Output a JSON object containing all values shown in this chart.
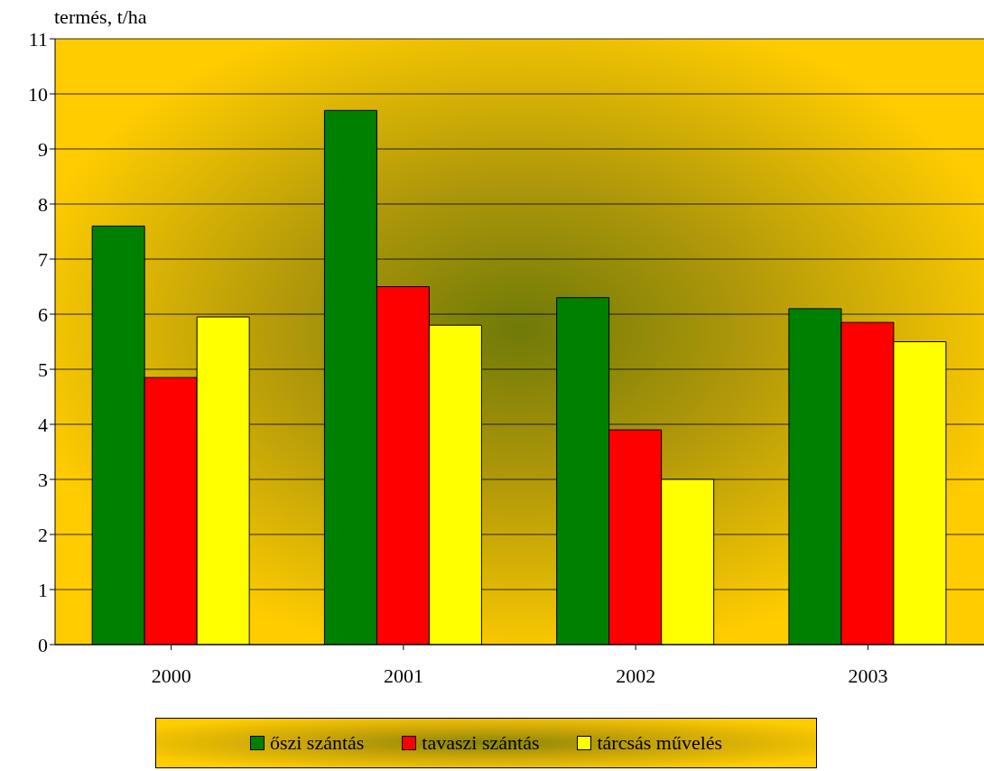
{
  "chart_data": {
    "type": "bar",
    "ylabel": "termés, t/ha",
    "categories": [
      "2000",
      "2001",
      "2002",
      "2003"
    ],
    "series": [
      {
        "name": "őszi szántás",
        "color": "#008000",
        "values": [
          7.6,
          9.7,
          6.3,
          6.1
        ]
      },
      {
        "name": "tavaszi szántás",
        "color": "#ff0000",
        "values": [
          4.85,
          6.5,
          3.9,
          5.85
        ]
      },
      {
        "name": "tárcsás művelés",
        "color": "#ffff00",
        "values": [
          5.95,
          5.8,
          3.0,
          5.5
        ]
      }
    ],
    "ylim": [
      0,
      11
    ],
    "yticks": [
      0,
      1,
      2,
      3,
      4,
      5,
      6,
      7,
      8,
      9,
      10,
      11
    ],
    "grid": "y",
    "legend": "bottom"
  }
}
